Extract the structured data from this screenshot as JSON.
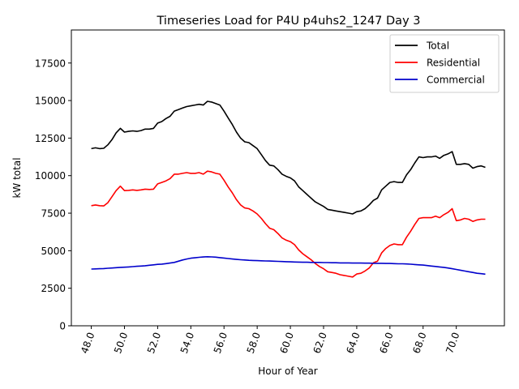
{
  "chart_data": {
    "type": "line",
    "title": "Timeseries Load for P4U p4uhs2_1247  Day 3",
    "xlabel": "Hour of Year",
    "ylabel": "kW total",
    "xlim": [
      46.8,
      72.9
    ],
    "ylim": [
      0,
      19700
    ],
    "xticks": [
      48,
      50,
      52,
      54,
      56,
      58,
      60,
      62,
      64,
      66,
      68,
      70
    ],
    "xtick_labels": [
      "48.0",
      "50.0",
      "52.0",
      "54.0",
      "56.0",
      "58.0",
      "60.0",
      "62.0",
      "64.0",
      "66.0",
      "68.0",
      "70.0"
    ],
    "yticks": [
      0,
      2500,
      5000,
      7500,
      10000,
      12500,
      15000,
      17500
    ],
    "ytick_labels": [
      "0",
      "2500",
      "5000",
      "7500",
      "10000",
      "12500",
      "15000",
      "17500"
    ],
    "grid": false,
    "legend_position": "top-right",
    "x": [
      48.0,
      48.25,
      48.5,
      48.75,
      49.0,
      49.25,
      49.5,
      49.75,
      50.0,
      50.25,
      50.5,
      50.75,
      51.0,
      51.25,
      51.5,
      51.75,
      52.0,
      52.25,
      52.5,
      52.75,
      53.0,
      53.25,
      53.5,
      53.75,
      54.0,
      54.25,
      54.5,
      54.75,
      55.0,
      55.25,
      55.5,
      55.75,
      56.0,
      56.25,
      56.5,
      56.75,
      57.0,
      57.25,
      57.5,
      57.75,
      58.0,
      58.25,
      58.5,
      58.75,
      59.0,
      59.25,
      59.5,
      59.75,
      60.0,
      60.25,
      60.5,
      60.75,
      61.0,
      61.25,
      61.5,
      61.75,
      62.0,
      62.25,
      62.5,
      62.75,
      63.0,
      63.25,
      63.5,
      63.75,
      64.0,
      64.25,
      64.5,
      64.75,
      65.0,
      65.25,
      65.5,
      65.75,
      66.0,
      66.25,
      66.5,
      66.75,
      67.0,
      67.25,
      67.5,
      67.75,
      68.0,
      68.25,
      68.5,
      68.75,
      69.0,
      69.25,
      69.5,
      69.75,
      70.0,
      70.25,
      70.5,
      70.75,
      71.0,
      71.25,
      71.5,
      71.75
    ],
    "series": [
      {
        "name": "Total",
        "color": "#000000",
        "values": [
          11800,
          11850,
          11800,
          11820,
          12050,
          12400,
          12850,
          13150,
          12900,
          12950,
          12980,
          12950,
          13000,
          13100,
          13100,
          13150,
          13500,
          13600,
          13800,
          13950,
          14300,
          14400,
          14500,
          14600,
          14650,
          14700,
          14750,
          14700,
          14950,
          14900,
          14800,
          14700,
          14300,
          13850,
          13400,
          12900,
          12500,
          12250,
          12200,
          12000,
          11800,
          11400,
          11000,
          10700,
          10650,
          10400,
          10100,
          9950,
          9850,
          9650,
          9250,
          9000,
          8750,
          8500,
          8250,
          8100,
          7950,
          7750,
          7700,
          7650,
          7600,
          7550,
          7500,
          7450,
          7600,
          7650,
          7800,
          8050,
          8350,
          8500,
          9050,
          9300,
          9550,
          9600,
          9550,
          9550,
          10050,
          10400,
          10850,
          11250,
          11200,
          11250,
          11250,
          11300,
          11150,
          11350,
          11450,
          11600,
          10750,
          10750,
          10800,
          10750,
          10500,
          10600,
          10650,
          10550
        ]
      },
      {
        "name": "Residential",
        "color": "#ff0000",
        "values": [
          8000,
          8050,
          8000,
          7980,
          8200,
          8600,
          9000,
          9300,
          9000,
          9020,
          9050,
          9020,
          9050,
          9100,
          9080,
          9100,
          9450,
          9550,
          9650,
          9800,
          10100,
          10100,
          10150,
          10200,
          10150,
          10150,
          10200,
          10100,
          10300,
          10250,
          10150,
          10100,
          9700,
          9250,
          8850,
          8400,
          8050,
          7850,
          7800,
          7650,
          7450,
          7150,
          6800,
          6500,
          6400,
          6150,
          5850,
          5700,
          5600,
          5400,
          5050,
          4800,
          4600,
          4400,
          4150,
          3950,
          3800,
          3600,
          3550,
          3500,
          3400,
          3350,
          3300,
          3250,
          3450,
          3500,
          3650,
          3850,
          4200,
          4300,
          4850,
          5150,
          5350,
          5450,
          5400,
          5400,
          5900,
          6300,
          6750,
          7150,
          7200,
          7200,
          7200,
          7300,
          7200,
          7400,
          7550,
          7800,
          7000,
          7050,
          7150,
          7100,
          6950,
          7050,
          7100,
          7100
        ]
      },
      {
        "name": "Commercial",
        "color": "#0000cc",
        "values": [
          3780,
          3790,
          3800,
          3810,
          3830,
          3850,
          3870,
          3890,
          3900,
          3920,
          3940,
          3960,
          3980,
          4000,
          4030,
          4060,
          4090,
          4110,
          4140,
          4180,
          4220,
          4300,
          4380,
          4450,
          4500,
          4530,
          4560,
          4580,
          4600,
          4590,
          4570,
          4540,
          4510,
          4480,
          4450,
          4420,
          4400,
          4380,
          4360,
          4350,
          4340,
          4330,
          4320,
          4310,
          4300,
          4290,
          4280,
          4270,
          4260,
          4250,
          4240,
          4230,
          4230,
          4220,
          4220,
          4220,
          4210,
          4210,
          4200,
          4200,
          4190,
          4190,
          4190,
          4180,
          4180,
          4180,
          4170,
          4170,
          4160,
          4160,
          4160,
          4150,
          4150,
          4140,
          4130,
          4130,
          4120,
          4100,
          4080,
          4060,
          4040,
          4010,
          3980,
          3950,
          3920,
          3890,
          3850,
          3800,
          3750,
          3700,
          3650,
          3600,
          3550,
          3500,
          3470,
          3440
        ]
      }
    ]
  }
}
